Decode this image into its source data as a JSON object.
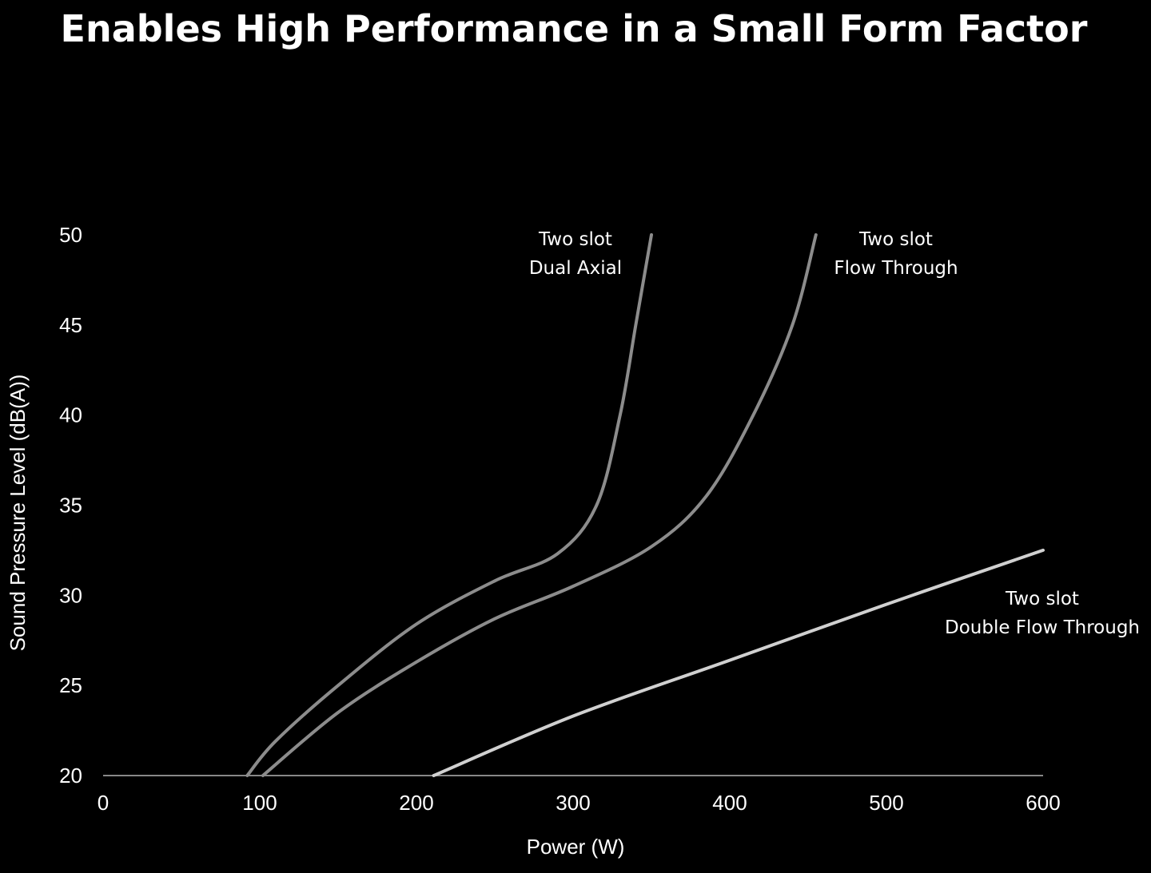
{
  "chart_data": {
    "type": "line",
    "title": "Enables High Performance in a Small Form Factor",
    "xlabel": "Power (W)",
    "ylabel": "Sound Pressure Level (dB(A))",
    "xlim": [
      0,
      600
    ],
    "ylim": [
      20,
      50
    ],
    "xticks": [
      "0",
      "100",
      "200",
      "300",
      "400",
      "500",
      "600"
    ],
    "yticks": [
      "20",
      "25",
      "30",
      "35",
      "40",
      "45",
      "50"
    ],
    "grid": false,
    "legend": "none",
    "series": [
      {
        "name": "Two slot Dual Axial",
        "label_lines": [
          "Two slot",
          "Dual Axial"
        ],
        "color": "#8c8c8c",
        "x": [
          92,
          110,
          150,
          200,
          250,
          290,
          315,
          330,
          340,
          350
        ],
        "y": [
          20,
          21.9,
          25,
          28.4,
          30.8,
          32.3,
          35,
          40,
          45,
          50
        ]
      },
      {
        "name": "Two slot Flow Through",
        "label_lines": [
          "Two slot",
          "Flow Through"
        ],
        "color": "#8c8c8c",
        "x": [
          102,
          150,
          200,
          250,
          300,
          350,
          385,
          415,
          440,
          455
        ],
        "y": [
          20,
          23.5,
          26.3,
          28.7,
          30.5,
          32.7,
          35.5,
          40,
          45,
          50
        ]
      },
      {
        "name": "Two slot Double Flow Through",
        "label_lines": [
          "Two slot",
          "Double Flow Through"
        ],
        "color": "#d0d0d0",
        "x": [
          211,
          300,
          400,
          500,
          600
        ],
        "y": [
          20,
          23.3,
          26.4,
          29.5,
          32.5
        ]
      }
    ]
  }
}
